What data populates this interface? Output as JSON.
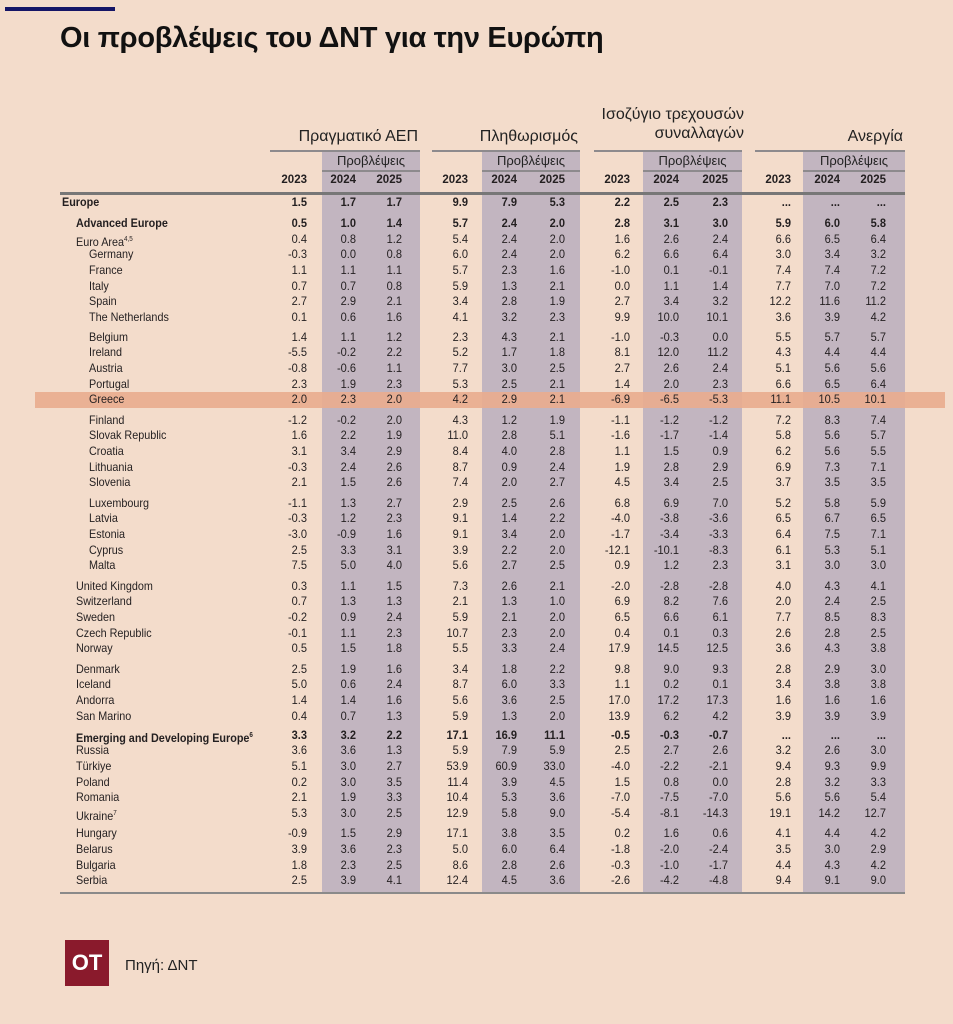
{
  "title": "Οι προβλέψεις του ΔΝΤ για την Ευρώπη",
  "colors": {
    "background": "#f3dccb",
    "forecast_band": "#c2b5c0",
    "highlight": "#e9ad8f",
    "accent_bar": "#151566",
    "logo": "#8a1a2c"
  },
  "groups": [
    {
      "label": "Πραγματικό ΑΕΠ",
      "forecast_label": "Προβλέψεις",
      "years": [
        "2023",
        "2024",
        "2025"
      ]
    },
    {
      "label": "Πληθωρισμός",
      "forecast_label": "Προβλέψεις",
      "years": [
        "2023",
        "2024",
        "2025"
      ]
    },
    {
      "label": "Ισοζύγιο τρεχουσών συναλλαγών",
      "forecast_label": "Προβλέψεις",
      "years": [
        "2023",
        "2024",
        "2025"
      ]
    },
    {
      "label": "Ανεργία",
      "forecast_label": "Προβλέψεις",
      "years": [
        "2023",
        "2024",
        "2025"
      ]
    }
  ],
  "highlighted_row": "Greece",
  "rows": [
    {
      "name": "Europe",
      "kind": "region",
      "values": [
        "1.5",
        "1.7",
        "1.7",
        "9.9",
        "7.9",
        "5.3",
        "2.2",
        "2.5",
        "2.3",
        "...",
        "...",
        "..."
      ]
    },
    {
      "name": "Advanced Europe",
      "kind": "subregion",
      "values": [
        "0.5",
        "1.0",
        "1.4",
        "5.7",
        "2.4",
        "2.0",
        "2.8",
        "3.1",
        "3.0",
        "5.9",
        "6.0",
        "5.8"
      ]
    },
    {
      "name": "Euro Area",
      "sup": "4,5",
      "kind": "group",
      "values": [
        "0.4",
        "0.8",
        "1.2",
        "5.4",
        "2.4",
        "2.0",
        "1.6",
        "2.6",
        "2.4",
        "6.6",
        "6.5",
        "6.4"
      ]
    },
    {
      "name": "Germany",
      "kind": "member",
      "values": [
        "-0.3",
        "0.0",
        "0.8",
        "6.0",
        "2.4",
        "2.0",
        "6.2",
        "6.6",
        "6.4",
        "3.0",
        "3.4",
        "3.2"
      ]
    },
    {
      "name": "France",
      "kind": "member",
      "values": [
        "1.1",
        "1.1",
        "1.1",
        "5.7",
        "2.3",
        "1.6",
        "-1.0",
        "0.1",
        "-0.1",
        "7.4",
        "7.4",
        "7.2"
      ]
    },
    {
      "name": "Italy",
      "kind": "member",
      "values": [
        "0.7",
        "0.7",
        "0.8",
        "5.9",
        "1.3",
        "2.1",
        "0.0",
        "1.1",
        "1.4",
        "7.7",
        "7.0",
        "7.2"
      ]
    },
    {
      "name": "Spain",
      "kind": "member",
      "values": [
        "2.7",
        "2.9",
        "2.1",
        "3.4",
        "2.8",
        "1.9",
        "2.7",
        "3.4",
        "3.2",
        "12.2",
        "11.6",
        "11.2"
      ]
    },
    {
      "name": "The Netherlands",
      "kind": "member",
      "values": [
        "0.1",
        "0.6",
        "1.6",
        "4.1",
        "3.2",
        "2.3",
        "9.9",
        "10.0",
        "10.1",
        "3.6",
        "3.9",
        "4.2"
      ]
    },
    {
      "name": "Belgium",
      "kind": "member",
      "values": [
        "1.4",
        "1.1",
        "1.2",
        "2.3",
        "4.3",
        "2.1",
        "-1.0",
        "-0.3",
        "0.0",
        "5.5",
        "5.7",
        "5.7"
      ]
    },
    {
      "name": "Ireland",
      "kind": "member",
      "values": [
        "-5.5",
        "-0.2",
        "2.2",
        "5.2",
        "1.7",
        "1.8",
        "8.1",
        "12.0",
        "11.2",
        "4.3",
        "4.4",
        "4.4"
      ]
    },
    {
      "name": "Austria",
      "kind": "member",
      "values": [
        "-0.8",
        "-0.6",
        "1.1",
        "7.7",
        "3.0",
        "2.5",
        "2.7",
        "2.6",
        "2.4",
        "5.1",
        "5.6",
        "5.6"
      ]
    },
    {
      "name": "Portugal",
      "kind": "member",
      "values": [
        "2.3",
        "1.9",
        "2.3",
        "5.3",
        "2.5",
        "2.1",
        "1.4",
        "2.0",
        "2.3",
        "6.6",
        "6.5",
        "6.4"
      ]
    },
    {
      "name": "Greece",
      "kind": "member",
      "values": [
        "2.0",
        "2.3",
        "2.0",
        "4.2",
        "2.9",
        "2.1",
        "-6.9",
        "-6.5",
        "-5.3",
        "11.1",
        "10.5",
        "10.1"
      ]
    },
    {
      "name": "Finland",
      "kind": "member",
      "values": [
        "-1.2",
        "-0.2",
        "2.0",
        "4.3",
        "1.2",
        "1.9",
        "-1.1",
        "-1.2",
        "-1.2",
        "7.2",
        "8.3",
        "7.4"
      ]
    },
    {
      "name": "Slovak Republic",
      "kind": "member",
      "values": [
        "1.6",
        "2.2",
        "1.9",
        "11.0",
        "2.8",
        "5.1",
        "-1.6",
        "-1.7",
        "-1.4",
        "5.8",
        "5.6",
        "5.7"
      ]
    },
    {
      "name": "Croatia",
      "kind": "member",
      "values": [
        "3.1",
        "3.4",
        "2.9",
        "8.4",
        "4.0",
        "2.8",
        "1.1",
        "1.5",
        "0.9",
        "6.2",
        "5.6",
        "5.5"
      ]
    },
    {
      "name": "Lithuania",
      "kind": "member",
      "values": [
        "-0.3",
        "2.4",
        "2.6",
        "8.7",
        "0.9",
        "2.4",
        "1.9",
        "2.8",
        "2.9",
        "6.9",
        "7.3",
        "7.1"
      ]
    },
    {
      "name": "Slovenia",
      "kind": "member",
      "values": [
        "2.1",
        "1.5",
        "2.6",
        "7.4",
        "2.0",
        "2.7",
        "4.5",
        "3.4",
        "2.5",
        "3.7",
        "3.5",
        "3.5"
      ]
    },
    {
      "name": "Luxembourg",
      "kind": "member",
      "values": [
        "-1.1",
        "1.3",
        "2.7",
        "2.9",
        "2.5",
        "2.6",
        "6.8",
        "6.9",
        "7.0",
        "5.2",
        "5.8",
        "5.9"
      ]
    },
    {
      "name": "Latvia",
      "kind": "member",
      "values": [
        "-0.3",
        "1.2",
        "2.3",
        "9.1",
        "1.4",
        "2.2",
        "-4.0",
        "-3.8",
        "-3.6",
        "6.5",
        "6.7",
        "6.5"
      ]
    },
    {
      "name": "Estonia",
      "kind": "member",
      "values": [
        "-3.0",
        "-0.9",
        "1.6",
        "9.1",
        "3.4",
        "2.0",
        "-1.7",
        "-3.4",
        "-3.3",
        "6.4",
        "7.5",
        "7.1"
      ]
    },
    {
      "name": "Cyprus",
      "kind": "member",
      "values": [
        "2.5",
        "3.3",
        "3.1",
        "3.9",
        "2.2",
        "2.0",
        "-12.1",
        "-10.1",
        "-8.3",
        "6.1",
        "5.3",
        "5.1"
      ]
    },
    {
      "name": "Malta",
      "kind": "member",
      "values": [
        "7.5",
        "5.0",
        "4.0",
        "5.6",
        "2.7",
        "2.5",
        "0.9",
        "1.2",
        "2.3",
        "3.1",
        "3.0",
        "3.0"
      ]
    },
    {
      "name": "United Kingdom",
      "kind": "group",
      "values": [
        "0.3",
        "1.1",
        "1.5",
        "7.3",
        "2.6",
        "2.1",
        "-2.0",
        "-2.8",
        "-2.8",
        "4.0",
        "4.3",
        "4.1"
      ]
    },
    {
      "name": "Switzerland",
      "kind": "group",
      "values": [
        "0.7",
        "1.3",
        "1.3",
        "2.1",
        "1.3",
        "1.0",
        "6.9",
        "8.2",
        "7.6",
        "2.0",
        "2.4",
        "2.5"
      ]
    },
    {
      "name": "Sweden",
      "kind": "group",
      "values": [
        "-0.2",
        "0.9",
        "2.4",
        "5.9",
        "2.1",
        "2.0",
        "6.5",
        "6.6",
        "6.1",
        "7.7",
        "8.5",
        "8.3"
      ]
    },
    {
      "name": "Czech Republic",
      "kind": "group",
      "values": [
        "-0.1",
        "1.1",
        "2.3",
        "10.7",
        "2.3",
        "2.0",
        "0.4",
        "0.1",
        "0.3",
        "2.6",
        "2.8",
        "2.5"
      ]
    },
    {
      "name": "Norway",
      "kind": "group",
      "values": [
        "0.5",
        "1.5",
        "1.8",
        "5.5",
        "3.3",
        "2.4",
        "17.9",
        "14.5",
        "12.5",
        "3.6",
        "4.3",
        "3.8"
      ]
    },
    {
      "name": "Denmark",
      "kind": "group",
      "values": [
        "2.5",
        "1.9",
        "1.6",
        "3.4",
        "1.8",
        "2.2",
        "9.8",
        "9.0",
        "9.3",
        "2.8",
        "2.9",
        "3.0"
      ]
    },
    {
      "name": "Iceland",
      "kind": "group",
      "values": [
        "5.0",
        "0.6",
        "2.4",
        "8.7",
        "6.0",
        "3.3",
        "1.1",
        "0.2",
        "0.1",
        "3.4",
        "3.8",
        "3.8"
      ]
    },
    {
      "name": "Andorra",
      "kind": "group",
      "values": [
        "1.4",
        "1.4",
        "1.6",
        "5.6",
        "3.6",
        "2.5",
        "17.0",
        "17.2",
        "17.3",
        "1.6",
        "1.6",
        "1.6"
      ]
    },
    {
      "name": "San Marino",
      "kind": "group",
      "values": [
        "0.4",
        "0.7",
        "1.3",
        "5.9",
        "1.3",
        "2.0",
        "13.9",
        "6.2",
        "4.2",
        "3.9",
        "3.9",
        "3.9"
      ]
    },
    {
      "name": "Emerging and Developing Europe",
      "sup": "6",
      "kind": "subregion",
      "values": [
        "3.3",
        "3.2",
        "2.2",
        "17.1",
        "16.9",
        "11.1",
        "-0.5",
        "-0.3",
        "-0.7",
        "...",
        "...",
        "..."
      ]
    },
    {
      "name": "Russia",
      "kind": "group",
      "values": [
        "3.6",
        "3.6",
        "1.3",
        "5.9",
        "7.9",
        "5.9",
        "2.5",
        "2.7",
        "2.6",
        "3.2",
        "2.6",
        "3.0"
      ]
    },
    {
      "name": "Türkiye",
      "kind": "group",
      "values": [
        "5.1",
        "3.0",
        "2.7",
        "53.9",
        "60.9",
        "33.0",
        "-4.0",
        "-2.2",
        "-2.1",
        "9.4",
        "9.3",
        "9.9"
      ]
    },
    {
      "name": "Poland",
      "kind": "group",
      "values": [
        "0.2",
        "3.0",
        "3.5",
        "11.4",
        "3.9",
        "4.5",
        "1.5",
        "0.8",
        "0.0",
        "2.8",
        "3.2",
        "3.3"
      ]
    },
    {
      "name": "Romania",
      "kind": "group",
      "values": [
        "2.1",
        "1.9",
        "3.3",
        "10.4",
        "5.3",
        "3.6",
        "-7.0",
        "-7.5",
        "-7.0",
        "5.6",
        "5.6",
        "5.4"
      ]
    },
    {
      "name": "Ukraine",
      "sup": "7",
      "kind": "group",
      "values": [
        "5.3",
        "3.0",
        "2.5",
        "12.9",
        "5.8",
        "9.0",
        "-5.4",
        "-8.1",
        "-14.3",
        "19.1",
        "14.2",
        "12.7"
      ]
    },
    {
      "name": "Hungary",
      "kind": "group",
      "values": [
        "-0.9",
        "1.5",
        "2.9",
        "17.1",
        "3.8",
        "3.5",
        "0.2",
        "1.6",
        "0.6",
        "4.1",
        "4.4",
        "4.2"
      ]
    },
    {
      "name": "Belarus",
      "kind": "group",
      "values": [
        "3.9",
        "3.6",
        "2.3",
        "5.0",
        "6.0",
        "6.4",
        "-1.8",
        "-2.0",
        "-2.4",
        "3.5",
        "3.0",
        "2.9"
      ]
    },
    {
      "name": "Bulgaria",
      "kind": "group",
      "values": [
        "1.8",
        "2.3",
        "2.5",
        "8.6",
        "2.8",
        "2.6",
        "-0.3",
        "-1.0",
        "-1.7",
        "4.4",
        "4.3",
        "4.2"
      ]
    },
    {
      "name": "Serbia",
      "kind": "group",
      "values": [
        "2.5",
        "3.9",
        "4.1",
        "12.4",
        "4.5",
        "3.6",
        "-2.6",
        "-4.2",
        "-4.8",
        "9.4",
        "9.1",
        "9.0"
      ]
    }
  ],
  "footer": {
    "logo_text": "OT",
    "source": "Πηγή: ΔΝΤ"
  }
}
